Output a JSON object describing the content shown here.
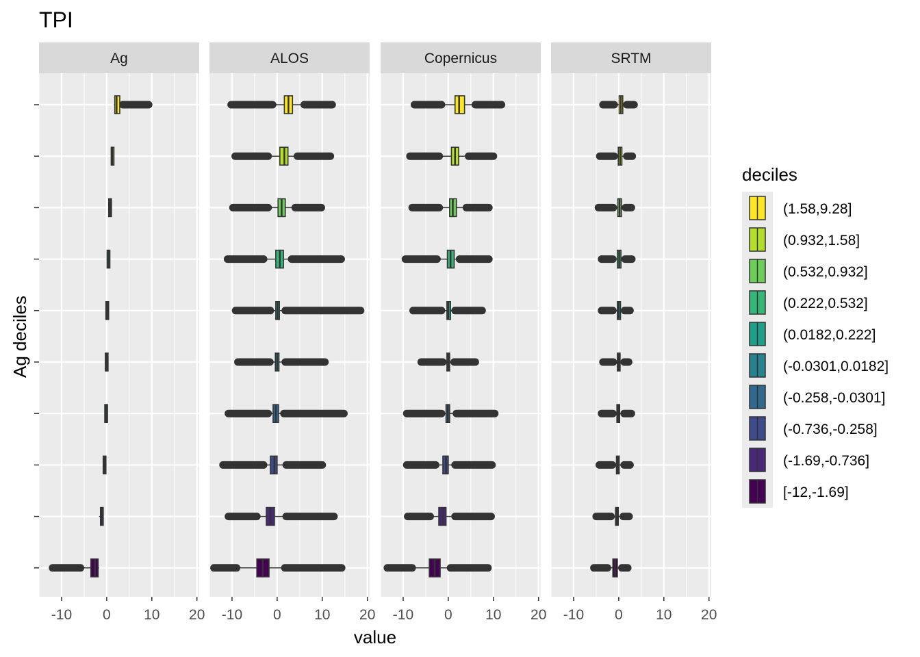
{
  "chart_data": {
    "type": "boxplot",
    "title": "TPI",
    "xlabel": "value",
    "ylabel": "Ag deciles",
    "xlim": [
      -15,
      20.5
    ],
    "x_ticks": [
      -10,
      0,
      10,
      20
    ],
    "grid": true,
    "legend": {
      "title": "deciles",
      "position": "right",
      "entries": [
        {
          "label": "(1.58,9.28]",
          "color": "#FDE725"
        },
        {
          "label": "(0.932,1.58]",
          "color": "#B4DE2C"
        },
        {
          "label": "(0.532,0.932]",
          "color": "#6DCD59"
        },
        {
          "label": "(0.222,0.532]",
          "color": "#35B779"
        },
        {
          "label": "(0.0182,0.222]",
          "color": "#1F9E89"
        },
        {
          "label": "(-0.0301,0.0182]",
          "color": "#26828E"
        },
        {
          "label": "(-0.258,-0.0301]",
          "color": "#31688E"
        },
        {
          "label": "(-0.736,-0.258]",
          "color": "#3E4A89"
        },
        {
          "label": "(-1.69,-0.736]",
          "color": "#482878"
        },
        {
          "label": "[-12,-1.69]",
          "color": "#440154"
        }
      ]
    },
    "panels": [
      {
        "name": "Ag",
        "boxes": [
          {
            "q1": 1.8,
            "median": 2.2,
            "q3": 2.9,
            "wlo": 1.6,
            "whi": 3.6,
            "olo": null,
            "ohi": 9.3
          },
          {
            "q1": 1.1,
            "median": 1.25,
            "q3": 1.5,
            "wlo": 0.95,
            "whi": 1.6,
            "olo": null,
            "ohi": null
          },
          {
            "q1": 0.6,
            "median": 0.75,
            "q3": 0.9,
            "wlo": 0.55,
            "whi": 0.95,
            "olo": null,
            "ohi": null
          },
          {
            "q1": 0.3,
            "median": 0.4,
            "q3": 0.5,
            "wlo": 0.22,
            "whi": 0.55,
            "olo": null,
            "ohi": null
          },
          {
            "q1": 0.05,
            "median": 0.12,
            "q3": 0.2,
            "wlo": 0.02,
            "whi": 0.22,
            "olo": null,
            "ohi": null
          },
          {
            "q1": -0.02,
            "median": 0.0,
            "q3": 0.01,
            "wlo": -0.03,
            "whi": 0.02,
            "olo": null,
            "ohi": null
          },
          {
            "q1": -0.2,
            "median": -0.12,
            "q3": -0.05,
            "wlo": -0.26,
            "whi": -0.03,
            "olo": null,
            "ohi": null
          },
          {
            "q1": -0.6,
            "median": -0.45,
            "q3": -0.35,
            "wlo": -0.74,
            "whi": -0.26,
            "olo": null,
            "ohi": null
          },
          {
            "q1": -1.3,
            "median": -1.0,
            "q3": -0.85,
            "wlo": -1.69,
            "whi": -0.74,
            "olo": null,
            "ohi": null
          },
          {
            "q1": -3.5,
            "median": -2.6,
            "q3": -1.9,
            "wlo": -5.8,
            "whi": -1.69,
            "olo": -12.0,
            "ohi": null
          }
        ]
      },
      {
        "name": "ALOS",
        "boxes": [
          {
            "q1": 1.6,
            "median": 2.5,
            "q3": 3.4,
            "wlo": -1.0,
            "whi": 6.0,
            "olo": -10.2,
            "ohi": 12.2
          },
          {
            "q1": 0.6,
            "median": 1.6,
            "q3": 2.4,
            "wlo": -2.0,
            "whi": 4.5,
            "olo": -9.3,
            "ohi": 11.8
          },
          {
            "q1": 0.2,
            "median": 1.0,
            "q3": 1.8,
            "wlo": -2.0,
            "whi": 4.0,
            "olo": -9.8,
            "ohi": 9.8
          },
          {
            "q1": -0.3,
            "median": 0.6,
            "q3": 1.4,
            "wlo": -3.0,
            "whi": 3.2,
            "olo": -11.0,
            "ohi": 14.2
          },
          {
            "q1": -0.3,
            "median": 0.1,
            "q3": 0.5,
            "wlo": -1.5,
            "whi": 1.8,
            "olo": -9.2,
            "ohi": 18.5
          },
          {
            "q1": -0.4,
            "median": 0.0,
            "q3": 0.4,
            "wlo": -1.6,
            "whi": 1.8,
            "olo": -8.7,
            "ohi": 10.6
          },
          {
            "q1": -0.9,
            "median": -0.3,
            "q3": 0.3,
            "wlo": -2.0,
            "whi": 1.5,
            "olo": -10.8,
            "ohi": 14.8
          },
          {
            "q1": -1.5,
            "median": -0.6,
            "q3": 0.0,
            "wlo": -3.0,
            "whi": 2.0,
            "olo": -12.0,
            "ohi": 10.0
          },
          {
            "q1": -2.4,
            "median": -1.5,
            "q3": -0.6,
            "wlo": -4.5,
            "whi": 2.0,
            "olo": -10.8,
            "ohi": 12.6
          },
          {
            "q1": -4.5,
            "median": -3.2,
            "q3": -1.8,
            "wlo": -9.0,
            "whi": 1.7,
            "olo": -14.0,
            "ohi": 14.3
          }
        ]
      },
      {
        "name": "Copernicus",
        "boxes": [
          {
            "q1": 1.5,
            "median": 2.4,
            "q3": 3.6,
            "wlo": -1.5,
            "whi": 6.0,
            "olo": -7.5,
            "ohi": 11.8
          },
          {
            "q1": 0.7,
            "median": 1.5,
            "q3": 2.3,
            "wlo": -2.0,
            "whi": 4.5,
            "olo": -8.5,
            "ohi": 10.0
          },
          {
            "q1": 0.3,
            "median": 1.0,
            "q3": 1.8,
            "wlo": -2.0,
            "whi": 4.0,
            "olo": -8.0,
            "ohi": 9.0
          },
          {
            "q1": -0.2,
            "median": 0.5,
            "q3": 1.3,
            "wlo": -2.5,
            "whi": 2.5,
            "olo": -9.5,
            "ohi": 9.0
          },
          {
            "q1": -0.3,
            "median": 0.0,
            "q3": 0.5,
            "wlo": -1.5,
            "whi": 1.5,
            "olo": -7.8,
            "ohi": 7.5
          },
          {
            "q1": -0.3,
            "median": 0.0,
            "q3": 0.3,
            "wlo": -1.2,
            "whi": 1.3,
            "olo": -6.0,
            "ohi": 6.0
          },
          {
            "q1": -0.5,
            "median": -0.1,
            "q3": 0.3,
            "wlo": -1.5,
            "whi": 1.8,
            "olo": -9.2,
            "ohi": 10.3
          },
          {
            "q1": -1.2,
            "median": -0.5,
            "q3": 0.0,
            "wlo": -2.8,
            "whi": 1.5,
            "olo": -9.2,
            "ohi": 9.7
          },
          {
            "q1": -2.1,
            "median": -1.2,
            "q3": -0.5,
            "wlo": -4.0,
            "whi": 1.5,
            "olo": -9.0,
            "ohi": 9.5
          },
          {
            "q1": -4.2,
            "median": -3.0,
            "q3": -1.8,
            "wlo": -8.0,
            "whi": 0.5,
            "olo": -13.5,
            "ohi": 8.8
          }
        ]
      },
      {
        "name": "SRTM",
        "boxes": [
          {
            "q1": 0.1,
            "median": 0.5,
            "q3": 0.9,
            "wlo": -1.0,
            "whi": 1.8,
            "olo": -3.5,
            "ohi": 3.4
          },
          {
            "q1": -0.1,
            "median": 0.3,
            "q3": 0.7,
            "wlo": -1.0,
            "whi": 1.8,
            "olo": -4.2,
            "ohi": 3.0
          },
          {
            "q1": -0.2,
            "median": 0.2,
            "q3": 0.6,
            "wlo": -1.2,
            "whi": 1.5,
            "olo": -4.5,
            "ohi": 2.8
          },
          {
            "q1": -0.3,
            "median": 0.1,
            "q3": 0.5,
            "wlo": -1.3,
            "whi": 1.4,
            "olo": -3.8,
            "ohi": 2.9
          },
          {
            "q1": -0.3,
            "median": 0.0,
            "q3": 0.4,
            "wlo": -1.3,
            "whi": 1.3,
            "olo": -3.8,
            "ohi": 2.5
          },
          {
            "q1": -0.3,
            "median": 0.0,
            "q3": 0.3,
            "wlo": -1.2,
            "whi": 1.2,
            "olo": -3.5,
            "ohi": 2.2
          },
          {
            "q1": -0.4,
            "median": -0.1,
            "q3": 0.2,
            "wlo": -1.3,
            "whi": 1.2,
            "olo": -3.8,
            "ohi": 2.8
          },
          {
            "q1": -0.5,
            "median": -0.2,
            "q3": 0.1,
            "wlo": -1.4,
            "whi": 1.2,
            "olo": -4.3,
            "ohi": 2.5
          },
          {
            "q1": -0.7,
            "median": -0.4,
            "q3": -0.1,
            "wlo": -1.7,
            "whi": 1.0,
            "olo": -5.0,
            "ohi": 2.3
          },
          {
            "q1": -1.3,
            "median": -0.8,
            "q3": -0.3,
            "wlo": -2.5,
            "whi": 0.7,
            "olo": -5.5,
            "ohi": 2.0
          }
        ]
      }
    ]
  }
}
